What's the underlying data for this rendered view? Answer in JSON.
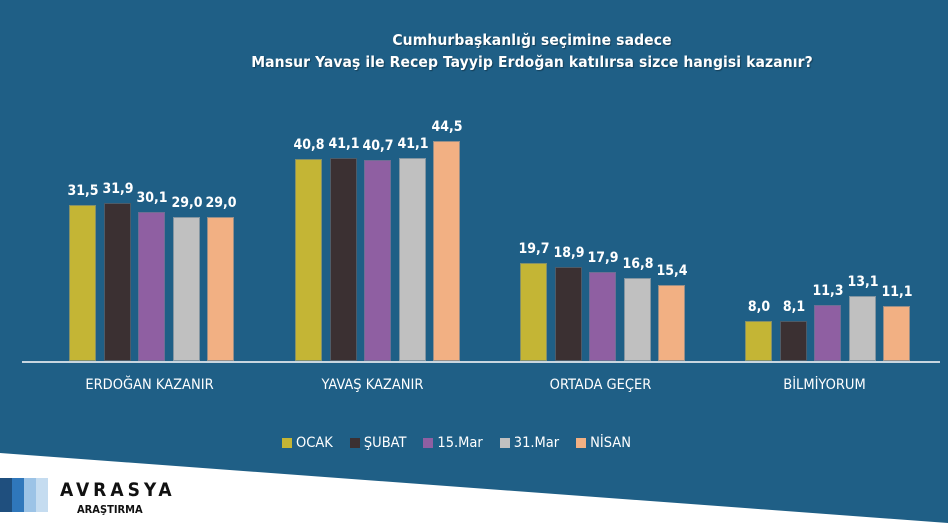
{
  "title": {
    "line1": "Cumhurbaşkanlığı seçimine sadece",
    "line2": "Mansur Yavaş ile Recep Tayyip Erdoğan katılırsa sizce hangisi kazanır?"
  },
  "colors": {
    "background": "#1f5f86",
    "OCAK": "#c4b535",
    "ŞUBAT": "#3b3032",
    "15.Mar": "#8f5fa2",
    "31.Mar": "#c0c0c0",
    "NİSAN": "#f2b083"
  },
  "legend": [
    {
      "label": "OCAK",
      "color": "#c4b535"
    },
    {
      "label": "ŞUBAT",
      "color": "#3b3032"
    },
    {
      "label": "15.Mar",
      "color": "#8f5fa2"
    },
    {
      "label": "31.Mar",
      "color": "#c0c0c0"
    },
    {
      "label": "NİSAN",
      "color": "#f2b083"
    }
  ],
  "categories_labels": [
    "ERDOĞAN KAZANIR",
    "YAVAŞ KAZANIR",
    "ORTADA GEÇER",
    "BİLMİYORUM"
  ],
  "chart_data": {
    "type": "bar",
    "title": "Cumhurbaşkanlığı seçimine sadece Mansur Yavaş ile Recep Tayyip Erdoğan katılırsa sizce hangisi kazanır?",
    "categories": [
      "ERDOĞAN KAZANIR",
      "YAVAŞ KAZANIR",
      "ORTADA GEÇER",
      "BİLMİYORUM"
    ],
    "series": [
      {
        "name": "OCAK",
        "values": [
          31.5,
          40.8,
          19.7,
          8.0
        ]
      },
      {
        "name": "ŞUBAT",
        "values": [
          31.9,
          41.1,
          18.9,
          8.1
        ]
      },
      {
        "name": "15.Mar",
        "values": [
          30.1,
          40.7,
          17.9,
          11.3
        ]
      },
      {
        "name": "31.Mar",
        "values": [
          29.0,
          41.1,
          16.8,
          13.1
        ]
      },
      {
        "name": "NİSAN",
        "values": [
          29.0,
          44.5,
          15.4,
          11.1
        ]
      }
    ],
    "value_labels": [
      [
        "31,5",
        "31,9",
        "30,1",
        "29,0",
        "29,0"
      ],
      [
        "40,8",
        "41,1",
        "40,7",
        "41,1",
        "44,5"
      ],
      [
        "19,7",
        "18,9",
        "17,9",
        "16,8",
        "15,4"
      ],
      [
        "8,0",
        "8,1",
        "11,3",
        "13,1",
        "11,1"
      ]
    ],
    "xlabel": "",
    "ylabel": "",
    "grid": false,
    "legend_position": "bottom"
  },
  "footer": {
    "brand": "AVRASYA",
    "subtitle": "ARAŞTIRMA",
    "logo_colors": [
      "#1f4f7e",
      "#2f77bb",
      "#9cc3e6",
      "#c5dcf0"
    ]
  }
}
